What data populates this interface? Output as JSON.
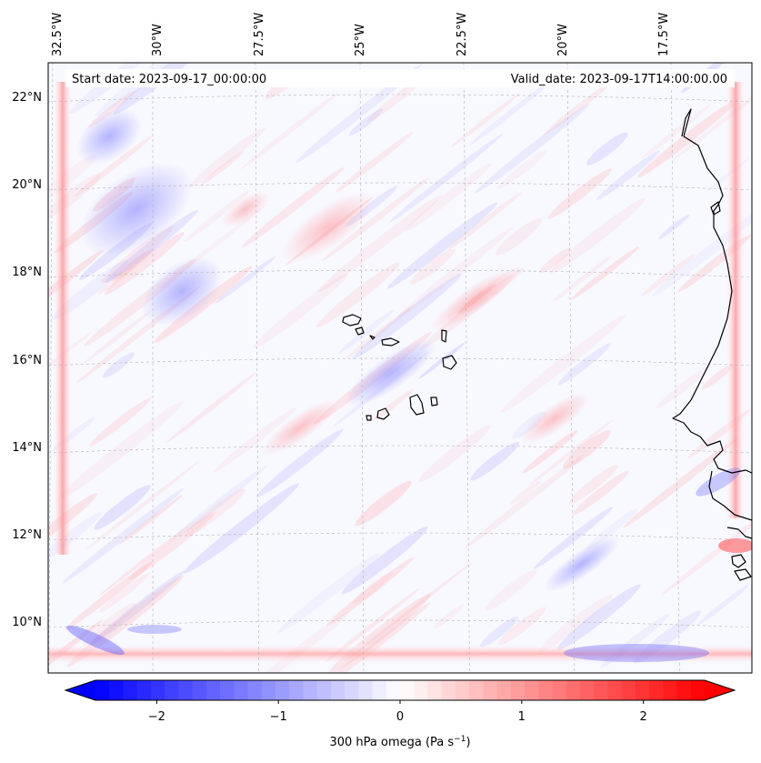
{
  "map": {
    "header": {
      "start_date": "Start date: 2023-09-17_00:00:00",
      "valid_date": "Valid_date: 2023-09-17T14:00:00.00"
    },
    "lon_labels": [
      "32.5°W",
      "30°W",
      "27.5°W",
      "25°W",
      "22.5°W",
      "20°W",
      "17.5°W"
    ],
    "lat_labels": [
      "22°N",
      "20°N",
      "18°N",
      "16°N",
      "14°N",
      "12°N",
      "10°N"
    ],
    "colors": {
      "negative": "#0000ff",
      "zero": "#ffffff",
      "positive": "#ff0000",
      "coastline": "#000000",
      "gridline": "#b4b4b4"
    },
    "colorbar": {
      "label": "300 hPa omega (Pa s",
      "label_exp": "−1",
      "label_end": ")",
      "ticks": [
        "−2",
        "−1",
        "0",
        "1",
        "2"
      ],
      "range": [
        -2.75,
        2.75
      ]
    }
  }
}
